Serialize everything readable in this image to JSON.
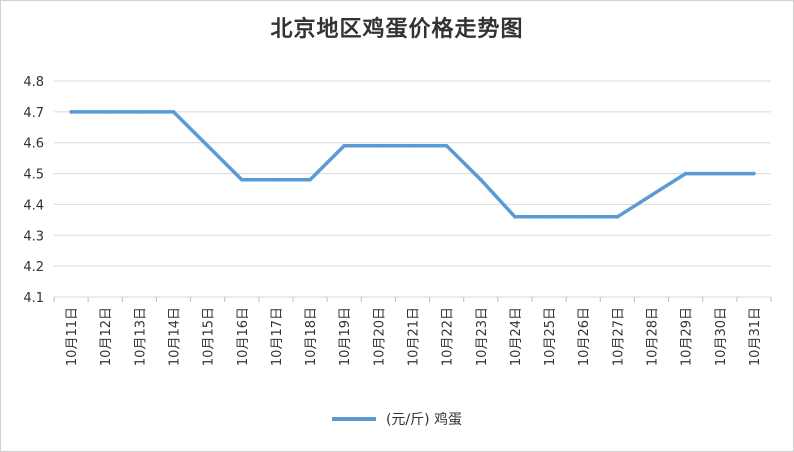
{
  "chart_data": {
    "type": "line",
    "title": "北京地区鸡蛋价格走势图",
    "categories": [
      "10月11日",
      "10月12日",
      "10月13日",
      "10月14日",
      "10月15日",
      "10月16日",
      "10月17日",
      "10月18日",
      "10月19日",
      "10月20日",
      "10月21日",
      "10月22日",
      "10月23日",
      "10月24日",
      "10月25日",
      "10月26日",
      "10月27日",
      "10月28日",
      "10月29日",
      "10月30日",
      "10月31日"
    ],
    "series": [
      {
        "name": "(元/斤) 鸡蛋",
        "values": [
          4.7,
          4.7,
          4.7,
          4.7,
          4.59,
          4.48,
          4.48,
          4.48,
          4.59,
          4.59,
          4.59,
          4.59,
          4.48,
          4.36,
          4.36,
          4.36,
          4.36,
          4.43,
          4.5,
          4.5,
          4.5
        ],
        "color": "#5b9bd5"
      }
    ],
    "yticks": [
      "4.1",
      "4.2",
      "4.3",
      "4.4",
      "4.5",
      "4.6",
      "4.7",
      "4.8"
    ],
    "ylim": [
      4.1,
      4.8
    ],
    "grid": true,
    "legend_position": "bottom"
  }
}
